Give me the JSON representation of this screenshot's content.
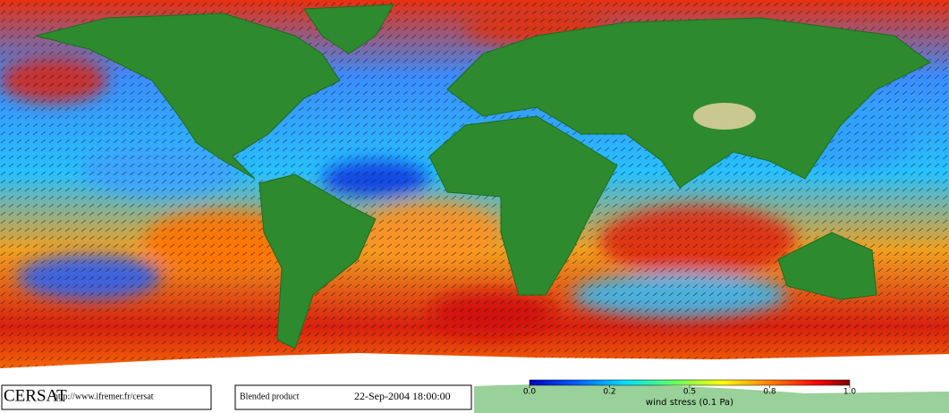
{
  "header": {
    "logo": "CERSAT",
    "url": "http://www.ifremer.fr/cersat",
    "product": "Blended product",
    "date": "22-Sep-2004 18:00:00"
  },
  "colorbar": {
    "label": "wind stress (0.1 Pa)",
    "lim": [
      0,
      1
    ],
    "ticks": [
      {
        "value": 0,
        "label": "0.0"
      },
      0.2,
      0.5,
      0.8,
      {
        "value": 1,
        "label": "1.0"
      }
    ]
  }
}
